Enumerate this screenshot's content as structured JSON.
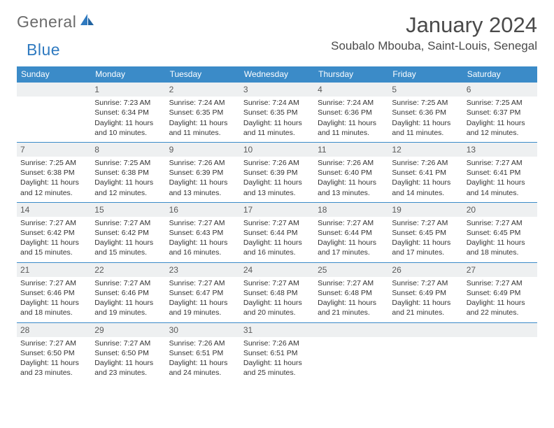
{
  "logo": {
    "text1": "General",
    "text2": "Blue"
  },
  "title": "January 2024",
  "location": "Soubalo Mbouba, Saint-Louis, Senegal",
  "colors": {
    "header_bg": "#3b8bc8",
    "header_fg": "#ffffff",
    "daynum_bg": "#eef0f1",
    "rule": "#3b8bc8"
  },
  "day_labels": [
    "Sunday",
    "Monday",
    "Tuesday",
    "Wednesday",
    "Thursday",
    "Friday",
    "Saturday"
  ],
  "weeks": [
    [
      {
        "n": "",
        "sunrise": "",
        "sunset": "",
        "daylight": ""
      },
      {
        "n": "1",
        "sunrise": "Sunrise: 7:23 AM",
        "sunset": "Sunset: 6:34 PM",
        "daylight": "Daylight: 11 hours and 10 minutes."
      },
      {
        "n": "2",
        "sunrise": "Sunrise: 7:24 AM",
        "sunset": "Sunset: 6:35 PM",
        "daylight": "Daylight: 11 hours and 11 minutes."
      },
      {
        "n": "3",
        "sunrise": "Sunrise: 7:24 AM",
        "sunset": "Sunset: 6:35 PM",
        "daylight": "Daylight: 11 hours and 11 minutes."
      },
      {
        "n": "4",
        "sunrise": "Sunrise: 7:24 AM",
        "sunset": "Sunset: 6:36 PM",
        "daylight": "Daylight: 11 hours and 11 minutes."
      },
      {
        "n": "5",
        "sunrise": "Sunrise: 7:25 AM",
        "sunset": "Sunset: 6:36 PM",
        "daylight": "Daylight: 11 hours and 11 minutes."
      },
      {
        "n": "6",
        "sunrise": "Sunrise: 7:25 AM",
        "sunset": "Sunset: 6:37 PM",
        "daylight": "Daylight: 11 hours and 12 minutes."
      }
    ],
    [
      {
        "n": "7",
        "sunrise": "Sunrise: 7:25 AM",
        "sunset": "Sunset: 6:38 PM",
        "daylight": "Daylight: 11 hours and 12 minutes."
      },
      {
        "n": "8",
        "sunrise": "Sunrise: 7:25 AM",
        "sunset": "Sunset: 6:38 PM",
        "daylight": "Daylight: 11 hours and 12 minutes."
      },
      {
        "n": "9",
        "sunrise": "Sunrise: 7:26 AM",
        "sunset": "Sunset: 6:39 PM",
        "daylight": "Daylight: 11 hours and 13 minutes."
      },
      {
        "n": "10",
        "sunrise": "Sunrise: 7:26 AM",
        "sunset": "Sunset: 6:39 PM",
        "daylight": "Daylight: 11 hours and 13 minutes."
      },
      {
        "n": "11",
        "sunrise": "Sunrise: 7:26 AM",
        "sunset": "Sunset: 6:40 PM",
        "daylight": "Daylight: 11 hours and 13 minutes."
      },
      {
        "n": "12",
        "sunrise": "Sunrise: 7:26 AM",
        "sunset": "Sunset: 6:41 PM",
        "daylight": "Daylight: 11 hours and 14 minutes."
      },
      {
        "n": "13",
        "sunrise": "Sunrise: 7:27 AM",
        "sunset": "Sunset: 6:41 PM",
        "daylight": "Daylight: 11 hours and 14 minutes."
      }
    ],
    [
      {
        "n": "14",
        "sunrise": "Sunrise: 7:27 AM",
        "sunset": "Sunset: 6:42 PM",
        "daylight": "Daylight: 11 hours and 15 minutes."
      },
      {
        "n": "15",
        "sunrise": "Sunrise: 7:27 AM",
        "sunset": "Sunset: 6:42 PM",
        "daylight": "Daylight: 11 hours and 15 minutes."
      },
      {
        "n": "16",
        "sunrise": "Sunrise: 7:27 AM",
        "sunset": "Sunset: 6:43 PM",
        "daylight": "Daylight: 11 hours and 16 minutes."
      },
      {
        "n": "17",
        "sunrise": "Sunrise: 7:27 AM",
        "sunset": "Sunset: 6:44 PM",
        "daylight": "Daylight: 11 hours and 16 minutes."
      },
      {
        "n": "18",
        "sunrise": "Sunrise: 7:27 AM",
        "sunset": "Sunset: 6:44 PM",
        "daylight": "Daylight: 11 hours and 17 minutes."
      },
      {
        "n": "19",
        "sunrise": "Sunrise: 7:27 AM",
        "sunset": "Sunset: 6:45 PM",
        "daylight": "Daylight: 11 hours and 17 minutes."
      },
      {
        "n": "20",
        "sunrise": "Sunrise: 7:27 AM",
        "sunset": "Sunset: 6:45 PM",
        "daylight": "Daylight: 11 hours and 18 minutes."
      }
    ],
    [
      {
        "n": "21",
        "sunrise": "Sunrise: 7:27 AM",
        "sunset": "Sunset: 6:46 PM",
        "daylight": "Daylight: 11 hours and 18 minutes."
      },
      {
        "n": "22",
        "sunrise": "Sunrise: 7:27 AM",
        "sunset": "Sunset: 6:46 PM",
        "daylight": "Daylight: 11 hours and 19 minutes."
      },
      {
        "n": "23",
        "sunrise": "Sunrise: 7:27 AM",
        "sunset": "Sunset: 6:47 PM",
        "daylight": "Daylight: 11 hours and 19 minutes."
      },
      {
        "n": "24",
        "sunrise": "Sunrise: 7:27 AM",
        "sunset": "Sunset: 6:48 PM",
        "daylight": "Daylight: 11 hours and 20 minutes."
      },
      {
        "n": "25",
        "sunrise": "Sunrise: 7:27 AM",
        "sunset": "Sunset: 6:48 PM",
        "daylight": "Daylight: 11 hours and 21 minutes."
      },
      {
        "n": "26",
        "sunrise": "Sunrise: 7:27 AM",
        "sunset": "Sunset: 6:49 PM",
        "daylight": "Daylight: 11 hours and 21 minutes."
      },
      {
        "n": "27",
        "sunrise": "Sunrise: 7:27 AM",
        "sunset": "Sunset: 6:49 PM",
        "daylight": "Daylight: 11 hours and 22 minutes."
      }
    ],
    [
      {
        "n": "28",
        "sunrise": "Sunrise: 7:27 AM",
        "sunset": "Sunset: 6:50 PM",
        "daylight": "Daylight: 11 hours and 23 minutes."
      },
      {
        "n": "29",
        "sunrise": "Sunrise: 7:27 AM",
        "sunset": "Sunset: 6:50 PM",
        "daylight": "Daylight: 11 hours and 23 minutes."
      },
      {
        "n": "30",
        "sunrise": "Sunrise: 7:26 AM",
        "sunset": "Sunset: 6:51 PM",
        "daylight": "Daylight: 11 hours and 24 minutes."
      },
      {
        "n": "31",
        "sunrise": "Sunrise: 7:26 AM",
        "sunset": "Sunset: 6:51 PM",
        "daylight": "Daylight: 11 hours and 25 minutes."
      },
      {
        "n": "",
        "sunrise": "",
        "sunset": "",
        "daylight": ""
      },
      {
        "n": "",
        "sunrise": "",
        "sunset": "",
        "daylight": ""
      },
      {
        "n": "",
        "sunrise": "",
        "sunset": "",
        "daylight": ""
      }
    ]
  ]
}
